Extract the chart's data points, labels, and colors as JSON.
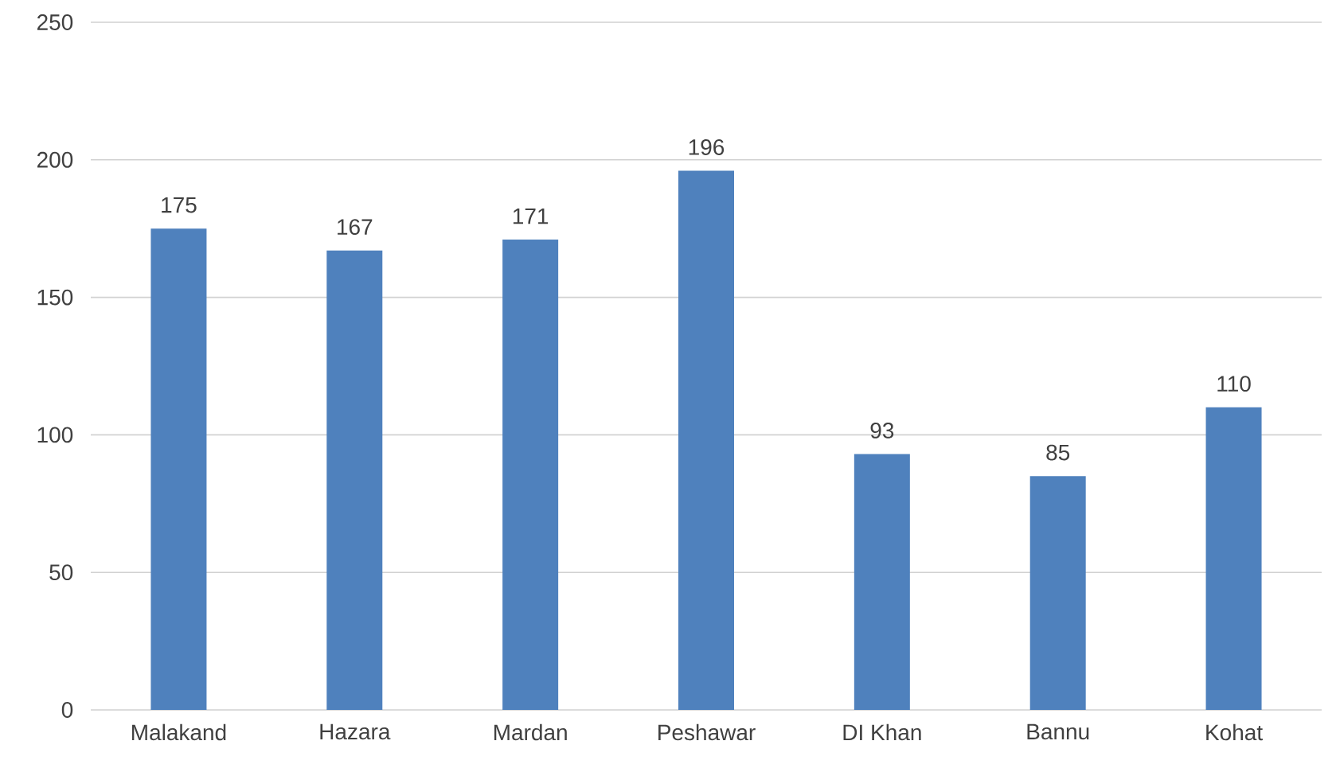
{
  "chart_data": {
    "type": "bar",
    "categories": [
      "Malakand",
      "Hazara",
      "Mardan",
      "Peshawar",
      "DI Khan",
      "Bannu",
      "Kohat"
    ],
    "values": [
      175,
      167,
      171,
      196,
      93,
      85,
      110
    ],
    "color": "#4f81bd",
    "ylim": [
      0,
      250
    ],
    "yticks": [
      0,
      50,
      100,
      150,
      200,
      250
    ],
    "grid": "y",
    "data_labels": true
  }
}
